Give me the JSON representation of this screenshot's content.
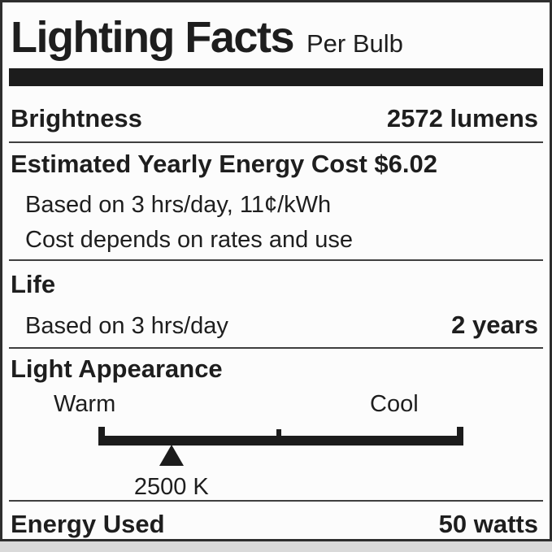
{
  "page": {
    "background_color": "#d9d9d9"
  },
  "label": {
    "title": "Lighting Facts",
    "per_unit": "Per Bulb",
    "colors": {
      "text": "#1e1e1e",
      "bar": "#1c1c1c",
      "card_background": "#fcfcfc",
      "divider": "#3f3f3f"
    },
    "brightness": {
      "name": "Brightness",
      "value": "2572 lumens"
    },
    "energy_cost": {
      "heading": "Estimated Yearly Energy Cost $6.02",
      "basis_note": "Based on 3 hrs/day, 11¢/kWh",
      "disclaimer_note": "Cost depends on rates and use"
    },
    "life": {
      "heading": "Life",
      "basis_note": "Based on 3 hrs/day",
      "value": "2 years"
    },
    "light_appearance": {
      "heading": "Light Appearance",
      "warm_label": "Warm",
      "cool_label": "Cool",
      "color_temperature": "2500 K",
      "marker_position_pct": 20
    },
    "energy_used": {
      "name": "Energy Used",
      "value": "50 watts"
    }
  }
}
